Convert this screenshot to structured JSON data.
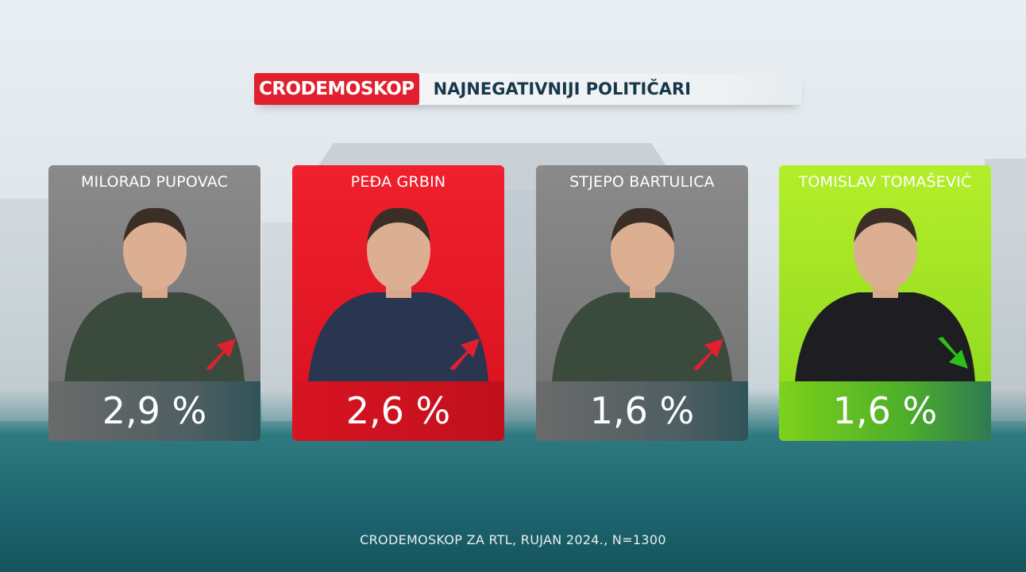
{
  "header": {
    "brand": "CRODEMOSKOP",
    "title": "NAJNEGATIVNIJI POLITIČARI",
    "brand_color": "#e0202f"
  },
  "cards": [
    {
      "name": "MILORAD PUPOVAC",
      "value": "2,9 %",
      "trend": "up",
      "theme": "gray"
    },
    {
      "name": "PEĐA GRBIN",
      "value": "2,6 %",
      "trend": "up",
      "theme": "red"
    },
    {
      "name": "STJEPO BARTULICA",
      "value": "1,6 %",
      "trend": "up",
      "theme": "gray"
    },
    {
      "name": "TOMISLAV TOMAŠEVIĆ",
      "value": "1,6 %",
      "trend": "down",
      "theme": "green"
    }
  ],
  "colors": {
    "up": "#e0202f",
    "down": "#2fbf1a"
  },
  "footer": "CRODEMOSKOP ZA RTL,  RUJAN 2024., N=1300"
}
